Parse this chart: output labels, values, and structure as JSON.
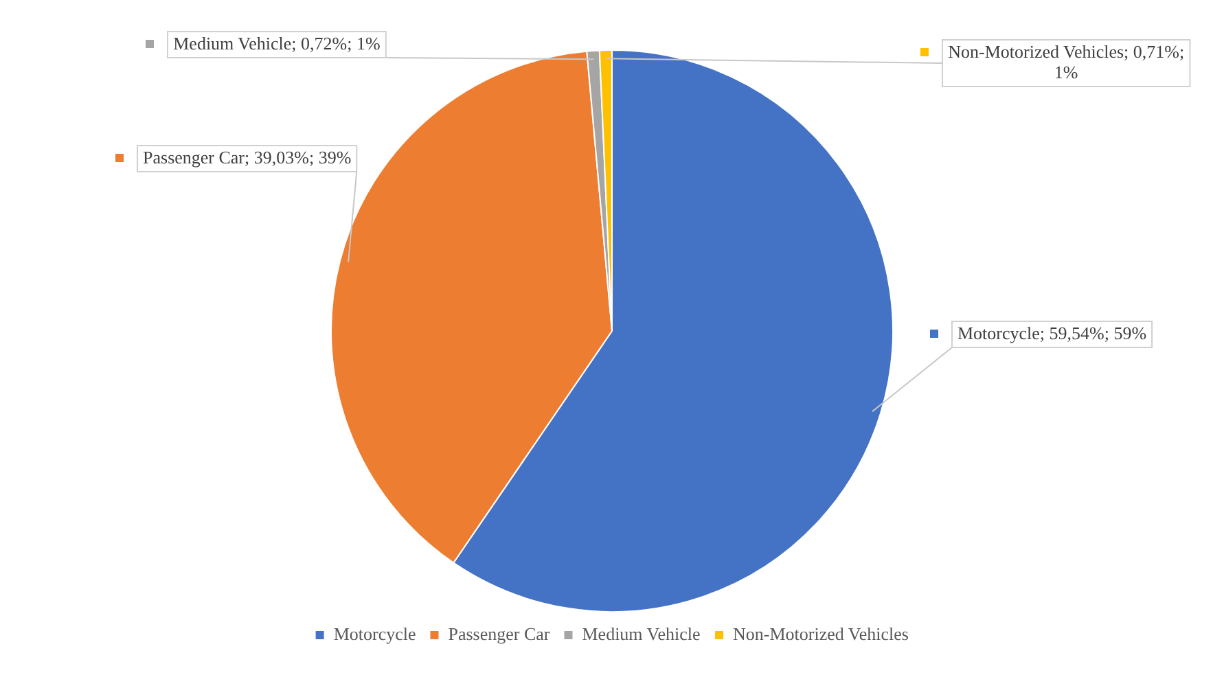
{
  "chart_data": {
    "type": "pie",
    "categories": [
      "Motorcycle",
      "Passenger Car",
      "Medium Vehicle",
      "Non-Motorized Vehicles"
    ],
    "values": [
      59.54,
      39.03,
      0.72,
      0.71
    ],
    "colors": [
      "#4472c4",
      "#ed7d31",
      "#a5a5a5",
      "#ffc000"
    ],
    "value_labels": [
      "Motorcycle; 59,54%; 59%",
      "Passenger Car; 39,03%; 39%",
      "Medium Vehicle; 0,72%; 1%",
      "Non-Motorized Vehicles; 0,71%; 1%"
    ],
    "legend": "bottom"
  }
}
